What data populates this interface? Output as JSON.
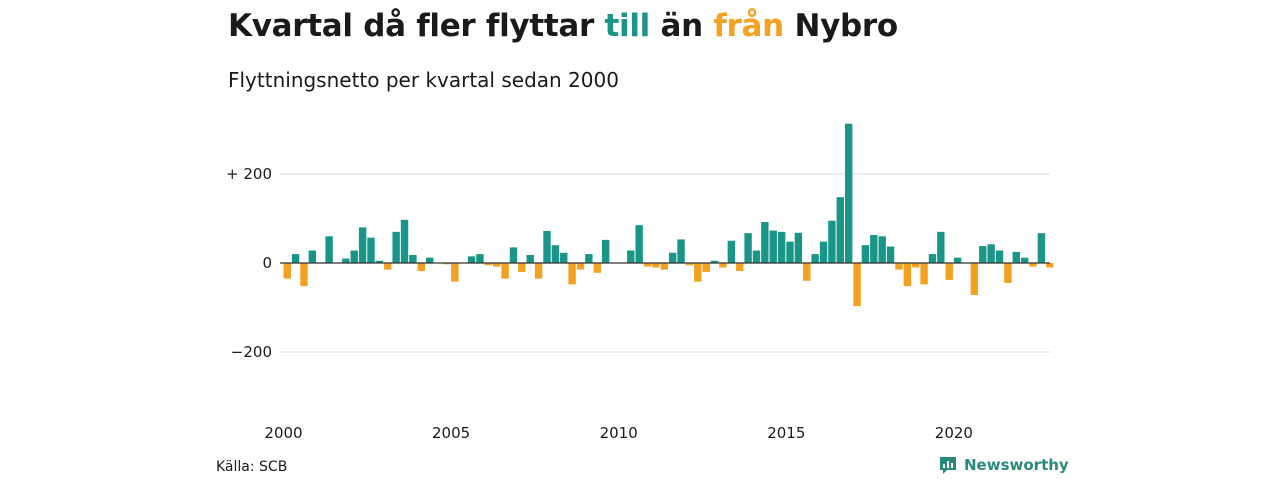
{
  "header": {
    "title_part1": "Kvartal då fler flyttar",
    "title_till": "till",
    "title_mid": "än",
    "title_fran": "från",
    "title_part2": "Nybro",
    "subtitle": "Flyttningsnetto per kvartal sedan 2000"
  },
  "footer": {
    "source": "Källa: SCB",
    "brand": "Newsworthy",
    "brand_icon": "bar-chart-logo-icon"
  },
  "colors": {
    "positive": "#1a9688",
    "negative": "#f4a020",
    "grid": "#dddddd",
    "zero_line": "#333333"
  },
  "chart_data": {
    "type": "bar",
    "x_start": "2000 Q1",
    "x_tick_labels": [
      "2000",
      "2005",
      "2010",
      "2015",
      "2020"
    ],
    "y_tick_labels": [
      "+ 200",
      "0",
      "−200"
    ],
    "y_ticks": [
      200,
      0,
      -200
    ],
    "ylim": [
      -320,
      320
    ],
    "grid": true,
    "values": [
      -35,
      20,
      -52,
      28,
      0,
      60,
      0,
      10,
      28,
      80,
      57,
      5,
      -15,
      70,
      97,
      18,
      -18,
      12,
      0,
      -3,
      -42,
      0,
      15,
      20,
      -5,
      -8,
      -35,
      35,
      -20,
      18,
      -35,
      72,
      40,
      23,
      -48,
      -15,
      20,
      -22,
      52,
      0,
      0,
      28,
      85,
      -8,
      -10,
      -15,
      23,
      53,
      -5,
      -42,
      -20,
      5,
      -10,
      50,
      -18,
      67,
      28,
      92,
      73,
      70,
      48,
      68,
      -40,
      20,
      48,
      95,
      148,
      313,
      -97,
      40,
      63,
      60,
      37,
      -15,
      -52,
      -10,
      -48,
      20,
      70,
      -38,
      12,
      0,
      -72,
      38,
      42,
      28,
      -45,
      25,
      12,
      -8,
      67,
      -10
    ]
  }
}
